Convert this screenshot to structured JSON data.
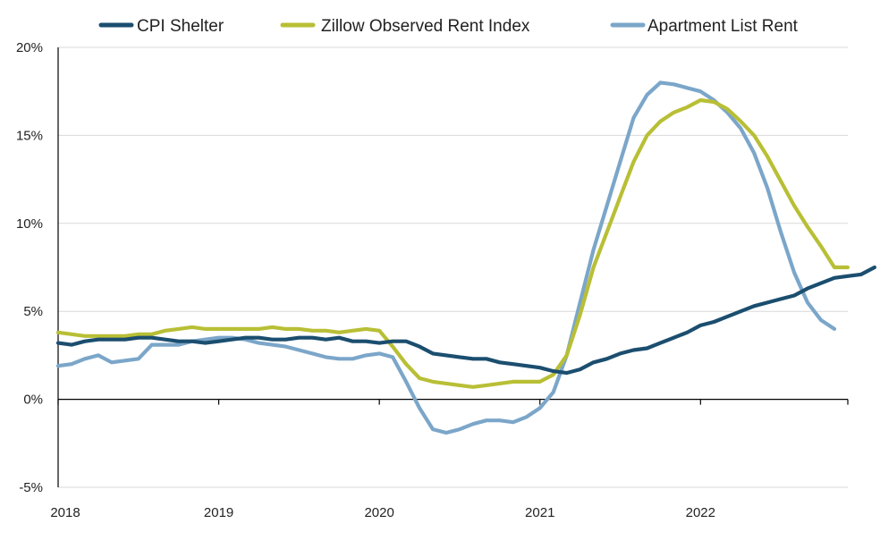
{
  "chart_data": {
    "type": "line",
    "title": "",
    "xlabel": "",
    "ylabel": "",
    "ylim": [
      -5,
      20
    ],
    "xlim": [
      2018.0,
      2022.917
    ],
    "y_ticks": [
      -5,
      0,
      5,
      10,
      15,
      20
    ],
    "y_tick_labels": [
      "-5%",
      "0%",
      "5%",
      "10%",
      "15%",
      "20%"
    ],
    "x_ticks": [
      2018,
      2019,
      2020,
      2021,
      2022
    ],
    "x_tick_labels": [
      "2018",
      "2019",
      "2020",
      "2021",
      "2022"
    ],
    "grid": "horizontal",
    "legend": "top",
    "series": [
      {
        "name": "CPI Shelter",
        "color": "#1b4e6f",
        "values": [
          3.2,
          3.1,
          3.3,
          3.4,
          3.4,
          3.4,
          3.5,
          3.5,
          3.4,
          3.3,
          3.3,
          3.2,
          3.3,
          3.4,
          3.5,
          3.5,
          3.4,
          3.4,
          3.5,
          3.5,
          3.4,
          3.5,
          3.3,
          3.3,
          3.2,
          3.3,
          3.3,
          3.0,
          2.6,
          2.5,
          2.4,
          2.3,
          2.3,
          2.1,
          2.0,
          1.9,
          1.8,
          1.6,
          1.5,
          1.7,
          2.1,
          2.3,
          2.6,
          2.8,
          2.9,
          3.2,
          3.5,
          3.8,
          4.2,
          4.4,
          4.7,
          5.0,
          5.3,
          5.5,
          5.7,
          5.9,
          6.3,
          6.6,
          6.9,
          7.0,
          7.1,
          7.5
        ]
      },
      {
        "name": "Zillow Observed Rent Index",
        "color": "#b8bf35",
        "values": [
          3.8,
          3.7,
          3.6,
          3.6,
          3.6,
          3.6,
          3.7,
          3.7,
          3.9,
          4.0,
          4.1,
          4.0,
          4.0,
          4.0,
          4.0,
          4.0,
          4.1,
          4.0,
          4.0,
          3.9,
          3.9,
          3.8,
          3.9,
          4.0,
          3.9,
          3.0,
          2.0,
          1.2,
          1.0,
          0.9,
          0.8,
          0.7,
          0.8,
          0.9,
          1.0,
          1.0,
          1.0,
          1.4,
          2.5,
          4.8,
          7.5,
          9.5,
          11.5,
          13.5,
          15.0,
          15.8,
          16.3,
          16.6,
          17.0,
          16.9,
          16.5,
          15.8,
          15.0,
          13.8,
          12.4,
          11.0,
          9.8,
          8.7,
          7.5,
          7.5
        ]
      },
      {
        "name": "Apartment List Rent",
        "color": "#7ba6c9",
        "values": [
          1.9,
          2.0,
          2.3,
          2.5,
          2.1,
          2.2,
          2.3,
          3.1,
          3.1,
          3.1,
          3.3,
          3.4,
          3.5,
          3.5,
          3.4,
          3.2,
          3.1,
          3.0,
          2.8,
          2.6,
          2.4,
          2.3,
          2.3,
          2.5,
          2.6,
          2.4,
          1.0,
          -0.5,
          -1.7,
          -1.9,
          -1.7,
          -1.4,
          -1.2,
          -1.2,
          -1.3,
          -1.0,
          -0.5,
          0.4,
          2.5,
          5.5,
          8.5,
          11.0,
          13.5,
          16.0,
          17.3,
          18.0,
          17.9,
          17.7,
          17.5,
          17.0,
          16.3,
          15.4,
          14.0,
          12.0,
          9.5,
          7.2,
          5.5,
          4.5,
          4.0
        ]
      }
    ]
  }
}
